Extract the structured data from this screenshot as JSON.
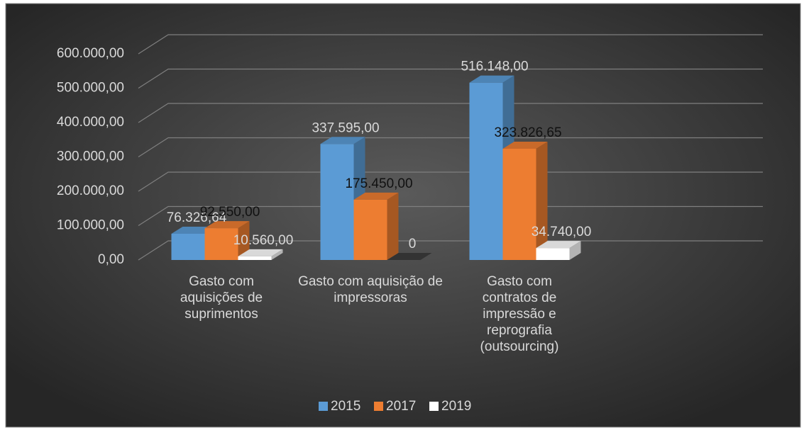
{
  "chart_data": {
    "type": "bar3d",
    "categories": [
      "Gasto com aquisições de suprimentos",
      "Gasto com aquisição de impressoras",
      "Gasto com contratos de impressão e reprografia (outsourcing)"
    ],
    "series": [
      {
        "name": "2015",
        "color": "#5b9bd5",
        "values": [
          76326.64,
          337595,
          516148
        ],
        "value_labels": [
          "76.326,64",
          "337.595,00",
          "516.148,00"
        ]
      },
      {
        "name": "2017",
        "color": "#ed7d31",
        "values": [
          92550,
          175450,
          323826.65
        ],
        "value_labels": [
          "92.550,00",
          "175.450,00",
          "323.826,65"
        ]
      },
      {
        "name": "2019",
        "color": "#ffffff",
        "values": [
          10560,
          0,
          34740
        ],
        "value_labels": [
          "10.560,00",
          "0",
          "34.740,00"
        ]
      }
    ],
    "ylim": [
      0,
      600000
    ],
    "yticks": [
      {
        "value": 0,
        "label": "0,00"
      },
      {
        "value": 100000,
        "label": "100.000,00"
      },
      {
        "value": 200000,
        "label": "200.000,00"
      },
      {
        "value": 300000,
        "label": "300.000,00"
      },
      {
        "value": 400000,
        "label": "400.000,00"
      },
      {
        "value": 500000,
        "label": "500.000,00"
      },
      {
        "value": 600000,
        "label": "600.000,00"
      }
    ],
    "grid": true,
    "legend": "bottom"
  }
}
